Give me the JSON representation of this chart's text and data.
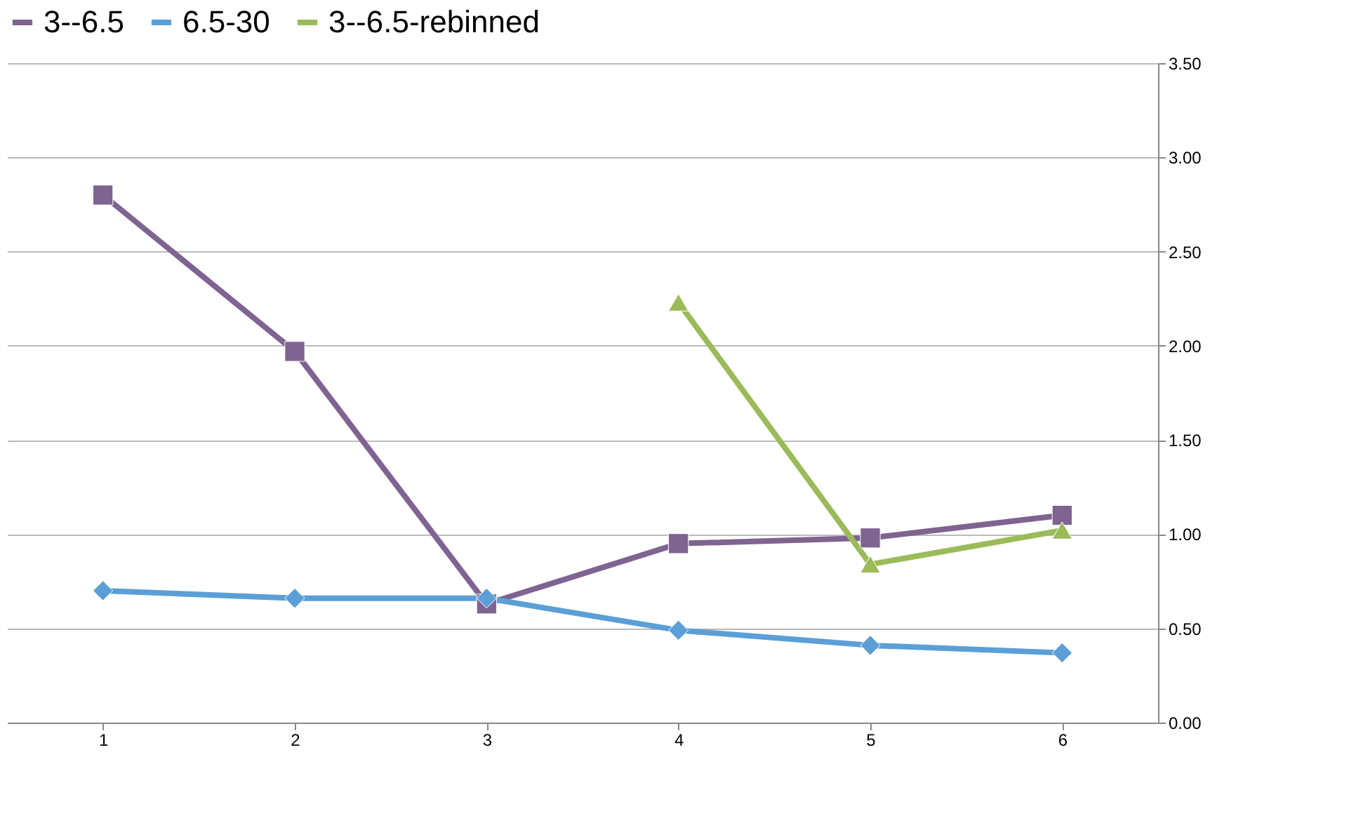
{
  "chart_data": {
    "type": "line",
    "categories": [
      "1",
      "2",
      "3",
      "4",
      "5",
      "6"
    ],
    "series": [
      {
        "name": "3--6.5",
        "color": "#7f6391",
        "marker": "square",
        "values": [
          2.8,
          1.97,
          0.63,
          0.95,
          0.98,
          1.1
        ]
      },
      {
        "name": "6.5-30",
        "color": "#5b9fd6",
        "marker": "diamond",
        "values": [
          0.7,
          0.66,
          0.66,
          0.49,
          0.41,
          0.37
        ]
      },
      {
        "name": "3--6.5-rebinned",
        "color": "#9bbb59",
        "marker": "triangle",
        "values": [
          null,
          null,
          null,
          2.23,
          0.84,
          1.02
        ]
      }
    ],
    "ylim": [
      0,
      3.5
    ],
    "yticks": [
      {
        "value": 0,
        "label": "0.00"
      },
      {
        "value": 0.5,
        "label": "0.50"
      },
      {
        "value": 1,
        "label": "1.00"
      },
      {
        "value": 1.5,
        "label": "1.50"
      },
      {
        "value": 2,
        "label": "2.00"
      },
      {
        "value": 2.5,
        "label": "2.50"
      },
      {
        "value": 3,
        "label": "3.00"
      },
      {
        "value": 3.5,
        "label": "3.50"
      }
    ],
    "grid": "y",
    "legend": "top",
    "line_style": "solid"
  }
}
